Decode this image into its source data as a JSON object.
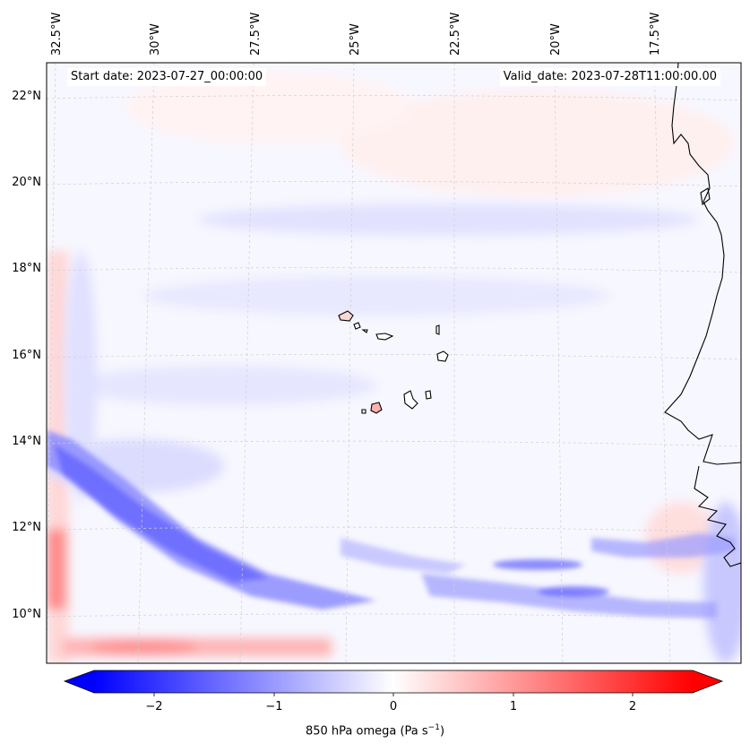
{
  "header": {
    "start_date": "Start date: 2023-07-27_00:00:00",
    "valid_date": "Valid_date: 2023-07-28T11:00:00.00"
  },
  "axes": {
    "lon_labels": [
      "32.5°W",
      "30°W",
      "27.5°W",
      "25°W",
      "22.5°W",
      "20°W",
      "17.5°W"
    ],
    "lat_labels": [
      "22°N",
      "20°N",
      "18°N",
      "16°N",
      "14°N",
      "12°N",
      "10°N"
    ],
    "lon_values": [
      -32.5,
      -30,
      -27.5,
      -25,
      -22.5,
      -20,
      -17.5
    ],
    "lat_values": [
      22,
      20,
      18,
      16,
      14,
      12,
      10
    ],
    "lon_range": [
      -32.6,
      -15.4
    ],
    "lat_range": [
      8.9,
      22.8
    ],
    "gridlines": true
  },
  "colorbar": {
    "label": "850 hPa omega (Pa s",
    "unit_sup": "−1",
    "label_close": ")",
    "ticks": [
      -2,
      -1,
      0,
      1,
      2
    ],
    "tick_labels": [
      "−2",
      "−1",
      "0",
      "1",
      "2"
    ],
    "vmin": -2.5,
    "vmax": 2.5,
    "extend": "both",
    "cmap": "bwr",
    "colors": {
      "min": "#0000ff",
      "mid": "#ffffff",
      "max": "#ff0000"
    }
  },
  "field": {
    "variable": "850 hPa omega",
    "features": [
      {
        "lon": -24.5,
        "lat": 11.5,
        "value": -1.2
      },
      {
        "lon": -29.5,
        "lat": 12.5,
        "value": -1.4
      },
      {
        "lon": -21,
        "lat": 11.0,
        "value": -1.0
      },
      {
        "lon": -17.5,
        "lat": 10.8,
        "value": -1.1
      },
      {
        "lon": -32.4,
        "lat": 11.0,
        "value": 1.2
      },
      {
        "lon": -30.0,
        "lat": 9.3,
        "value": 1.0
      }
    ]
  }
}
